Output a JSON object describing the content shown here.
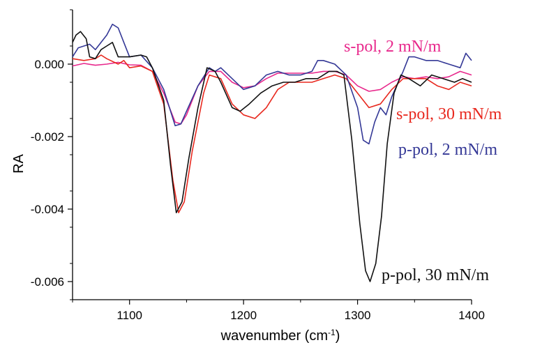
{
  "chart_data": {
    "type": "line",
    "title": "",
    "xlabel": "wavenumber (cm",
    "xlabel_sup": "-1",
    "xlabel_close": ")",
    "ylabel": "RA",
    "xlim": [
      1050,
      1400
    ],
    "ylim": [
      -0.0065,
      0.0015
    ],
    "x_ticks": [
      {
        "value": 1100,
        "label": "1100"
      },
      {
        "value": 1200,
        "label": "1200"
      },
      {
        "value": 1300,
        "label": "1300"
      },
      {
        "value": 1400,
        "label": "1400"
      }
    ],
    "y_ticks": [
      {
        "value": 0.0,
        "label": "0.000"
      },
      {
        "value": -0.002,
        "label": "-0.002"
      },
      {
        "value": -0.004,
        "label": "-0.004"
      },
      {
        "value": -0.006,
        "label": "-0.006"
      }
    ],
    "grid": false,
    "legend": "inline labels",
    "series": [
      {
        "name": "s-pol, 2 mN/m",
        "color": "#e8288c",
        "points": [
          [
            1050,
            -5e-05
          ],
          [
            1060,
            2e-05
          ],
          [
            1070,
            -3e-05
          ],
          [
            1080,
            0.0
          ],
          [
            1090,
            5e-05
          ],
          [
            1100,
            -2e-05
          ],
          [
            1110,
            -3e-05
          ],
          [
            1120,
            -0.0002
          ],
          [
            1130,
            -0.0008
          ],
          [
            1140,
            -0.0016
          ],
          [
            1145,
            -0.00165
          ],
          [
            1150,
            -0.0014
          ],
          [
            1160,
            -0.0006
          ],
          [
            1170,
            -0.0002
          ],
          [
            1180,
            -0.0002
          ],
          [
            1190,
            -0.0005
          ],
          [
            1200,
            -0.00065
          ],
          [
            1210,
            -0.0006
          ],
          [
            1220,
            -0.0004
          ],
          [
            1230,
            -0.00025
          ],
          [
            1240,
            -0.00025
          ],
          [
            1250,
            -0.00025
          ],
          [
            1260,
            -0.00025
          ],
          [
            1270,
            -0.0002
          ],
          [
            1280,
            -0.0002
          ],
          [
            1290,
            -0.0003
          ],
          [
            1300,
            -0.0006
          ],
          [
            1310,
            -0.00075
          ],
          [
            1320,
            -0.0007
          ],
          [
            1330,
            -0.0005
          ],
          [
            1340,
            -0.00035
          ],
          [
            1350,
            -0.0004
          ],
          [
            1360,
            -0.00035
          ],
          [
            1370,
            -0.0004
          ],
          [
            1380,
            -0.00035
          ],
          [
            1390,
            -0.0002
          ],
          [
            1400,
            -0.0003
          ]
        ]
      },
      {
        "name": "s-pol, 30 mN/m",
        "color": "#e8281e",
        "points": [
          [
            1050,
            0.00015
          ],
          [
            1060,
            0.0001
          ],
          [
            1070,
            0.00015
          ],
          [
            1075,
            0.00025
          ],
          [
            1080,
            0.00015
          ],
          [
            1090,
            0.0
          ],
          [
            1095,
            0.0001
          ],
          [
            1100,
            -0.0001
          ],
          [
            1110,
            -5e-05
          ],
          [
            1120,
            -0.0002
          ],
          [
            1130,
            -0.0011
          ],
          [
            1138,
            -0.0032
          ],
          [
            1143,
            -0.0041
          ],
          [
            1148,
            -0.0038
          ],
          [
            1155,
            -0.0024
          ],
          [
            1165,
            -0.0008
          ],
          [
            1170,
            -0.0003
          ],
          [
            1180,
            -0.0004
          ],
          [
            1190,
            -0.0011
          ],
          [
            1200,
            -0.0014
          ],
          [
            1210,
            -0.0015
          ],
          [
            1220,
            -0.0012
          ],
          [
            1230,
            -0.0007
          ],
          [
            1240,
            -0.0005
          ],
          [
            1250,
            -0.0005
          ],
          [
            1260,
            -0.0005
          ],
          [
            1270,
            -0.0004
          ],
          [
            1280,
            -0.0003
          ],
          [
            1290,
            -0.0004
          ],
          [
            1300,
            -0.0008
          ],
          [
            1310,
            -0.0012
          ],
          [
            1320,
            -0.0011
          ],
          [
            1330,
            -0.0007
          ],
          [
            1340,
            -0.0004
          ],
          [
            1350,
            -0.0004
          ],
          [
            1360,
            -0.0004
          ],
          [
            1370,
            -0.0006
          ],
          [
            1380,
            -0.0007
          ],
          [
            1390,
            -0.0005
          ],
          [
            1400,
            -0.0006
          ]
        ]
      },
      {
        "name": "p-pol, 2 mN/m",
        "color": "#343896",
        "points": [
          [
            1050,
            0.0002
          ],
          [
            1055,
            0.00045
          ],
          [
            1060,
            0.0005
          ],
          [
            1065,
            0.00055
          ],
          [
            1070,
            0.0004
          ],
          [
            1075,
            0.0006
          ],
          [
            1080,
            0.0008
          ],
          [
            1085,
            0.0011
          ],
          [
            1090,
            0.001
          ],
          [
            1095,
            0.0006
          ],
          [
            1100,
            0.0002
          ],
          [
            1110,
            0.00025
          ],
          [
            1120,
            -0.0001
          ],
          [
            1130,
            -0.0007
          ],
          [
            1140,
            -0.0017
          ],
          [
            1145,
            -0.00165
          ],
          [
            1150,
            -0.0013
          ],
          [
            1160,
            -0.0006
          ],
          [
            1170,
            -0.0001
          ],
          [
            1175,
            -0.0002
          ],
          [
            1180,
            -0.0001
          ],
          [
            1190,
            -0.0004
          ],
          [
            1200,
            -0.0007
          ],
          [
            1210,
            -0.0006
          ],
          [
            1220,
            -0.0003
          ],
          [
            1230,
            -0.0002
          ],
          [
            1240,
            -0.0003
          ],
          [
            1250,
            -0.0003
          ],
          [
            1260,
            -0.0002
          ],
          [
            1265,
            0.0001
          ],
          [
            1270,
            0.0001
          ],
          [
            1280,
            0.0
          ],
          [
            1290,
            -0.0003
          ],
          [
            1300,
            -0.0012
          ],
          [
            1305,
            -0.0021
          ],
          [
            1310,
            -0.0022
          ],
          [
            1315,
            -0.0016
          ],
          [
            1320,
            -0.0012
          ],
          [
            1325,
            -0.0014
          ],
          [
            1330,
            -0.0009
          ],
          [
            1340,
            -0.0002
          ],
          [
            1345,
            0.0002
          ],
          [
            1350,
            0.0002
          ],
          [
            1360,
            0.0001
          ],
          [
            1370,
            0.0001
          ],
          [
            1380,
            0.0
          ],
          [
            1390,
            -0.0001
          ],
          [
            1395,
            0.0003
          ],
          [
            1400,
            0.0001
          ]
        ]
      },
      {
        "name": "p-pol, 30 mN/m",
        "color": "#111111",
        "points": [
          [
            1050,
            0.0006
          ],
          [
            1053,
            0.0008
          ],
          [
            1057,
            0.0009
          ],
          [
            1062,
            0.0007
          ],
          [
            1065,
            0.0002
          ],
          [
            1070,
            0.00015
          ],
          [
            1075,
            0.0004
          ],
          [
            1080,
            0.0005
          ],
          [
            1085,
            0.0006
          ],
          [
            1090,
            0.0002
          ],
          [
            1100,
            0.0002
          ],
          [
            1110,
            0.00025
          ],
          [
            1115,
            0.0002
          ],
          [
            1120,
            -0.0001
          ],
          [
            1130,
            -0.001
          ],
          [
            1136,
            -0.0028
          ],
          [
            1141,
            -0.0041
          ],
          [
            1146,
            -0.0038
          ],
          [
            1152,
            -0.0026
          ],
          [
            1160,
            -0.0012
          ],
          [
            1168,
            -0.0001
          ],
          [
            1175,
            -0.0002
          ],
          [
            1180,
            -0.0005
          ],
          [
            1190,
            -0.0012
          ],
          [
            1197,
            -0.0013
          ],
          [
            1205,
            -0.0011
          ],
          [
            1215,
            -0.0008
          ],
          [
            1225,
            -0.0006
          ],
          [
            1235,
            -0.0005
          ],
          [
            1245,
            -0.0005
          ],
          [
            1255,
            -0.0004
          ],
          [
            1265,
            -0.0004
          ],
          [
            1275,
            -0.0002
          ],
          [
            1282,
            -0.0002
          ],
          [
            1288,
            -0.0003
          ],
          [
            1295,
            -0.0021
          ],
          [
            1302,
            -0.0044
          ],
          [
            1307,
            -0.0057
          ],
          [
            1311,
            -0.006
          ],
          [
            1316,
            -0.0055
          ],
          [
            1321,
            -0.0042
          ],
          [
            1326,
            -0.0022
          ],
          [
            1332,
            -0.0008
          ],
          [
            1338,
            -0.0003
          ],
          [
            1345,
            -0.0004
          ],
          [
            1355,
            -0.0006
          ],
          [
            1365,
            -0.0003
          ],
          [
            1375,
            -0.0004
          ],
          [
            1385,
            -0.0005
          ],
          [
            1392,
            -0.0004
          ],
          [
            1400,
            -0.0005
          ]
        ]
      }
    ]
  }
}
